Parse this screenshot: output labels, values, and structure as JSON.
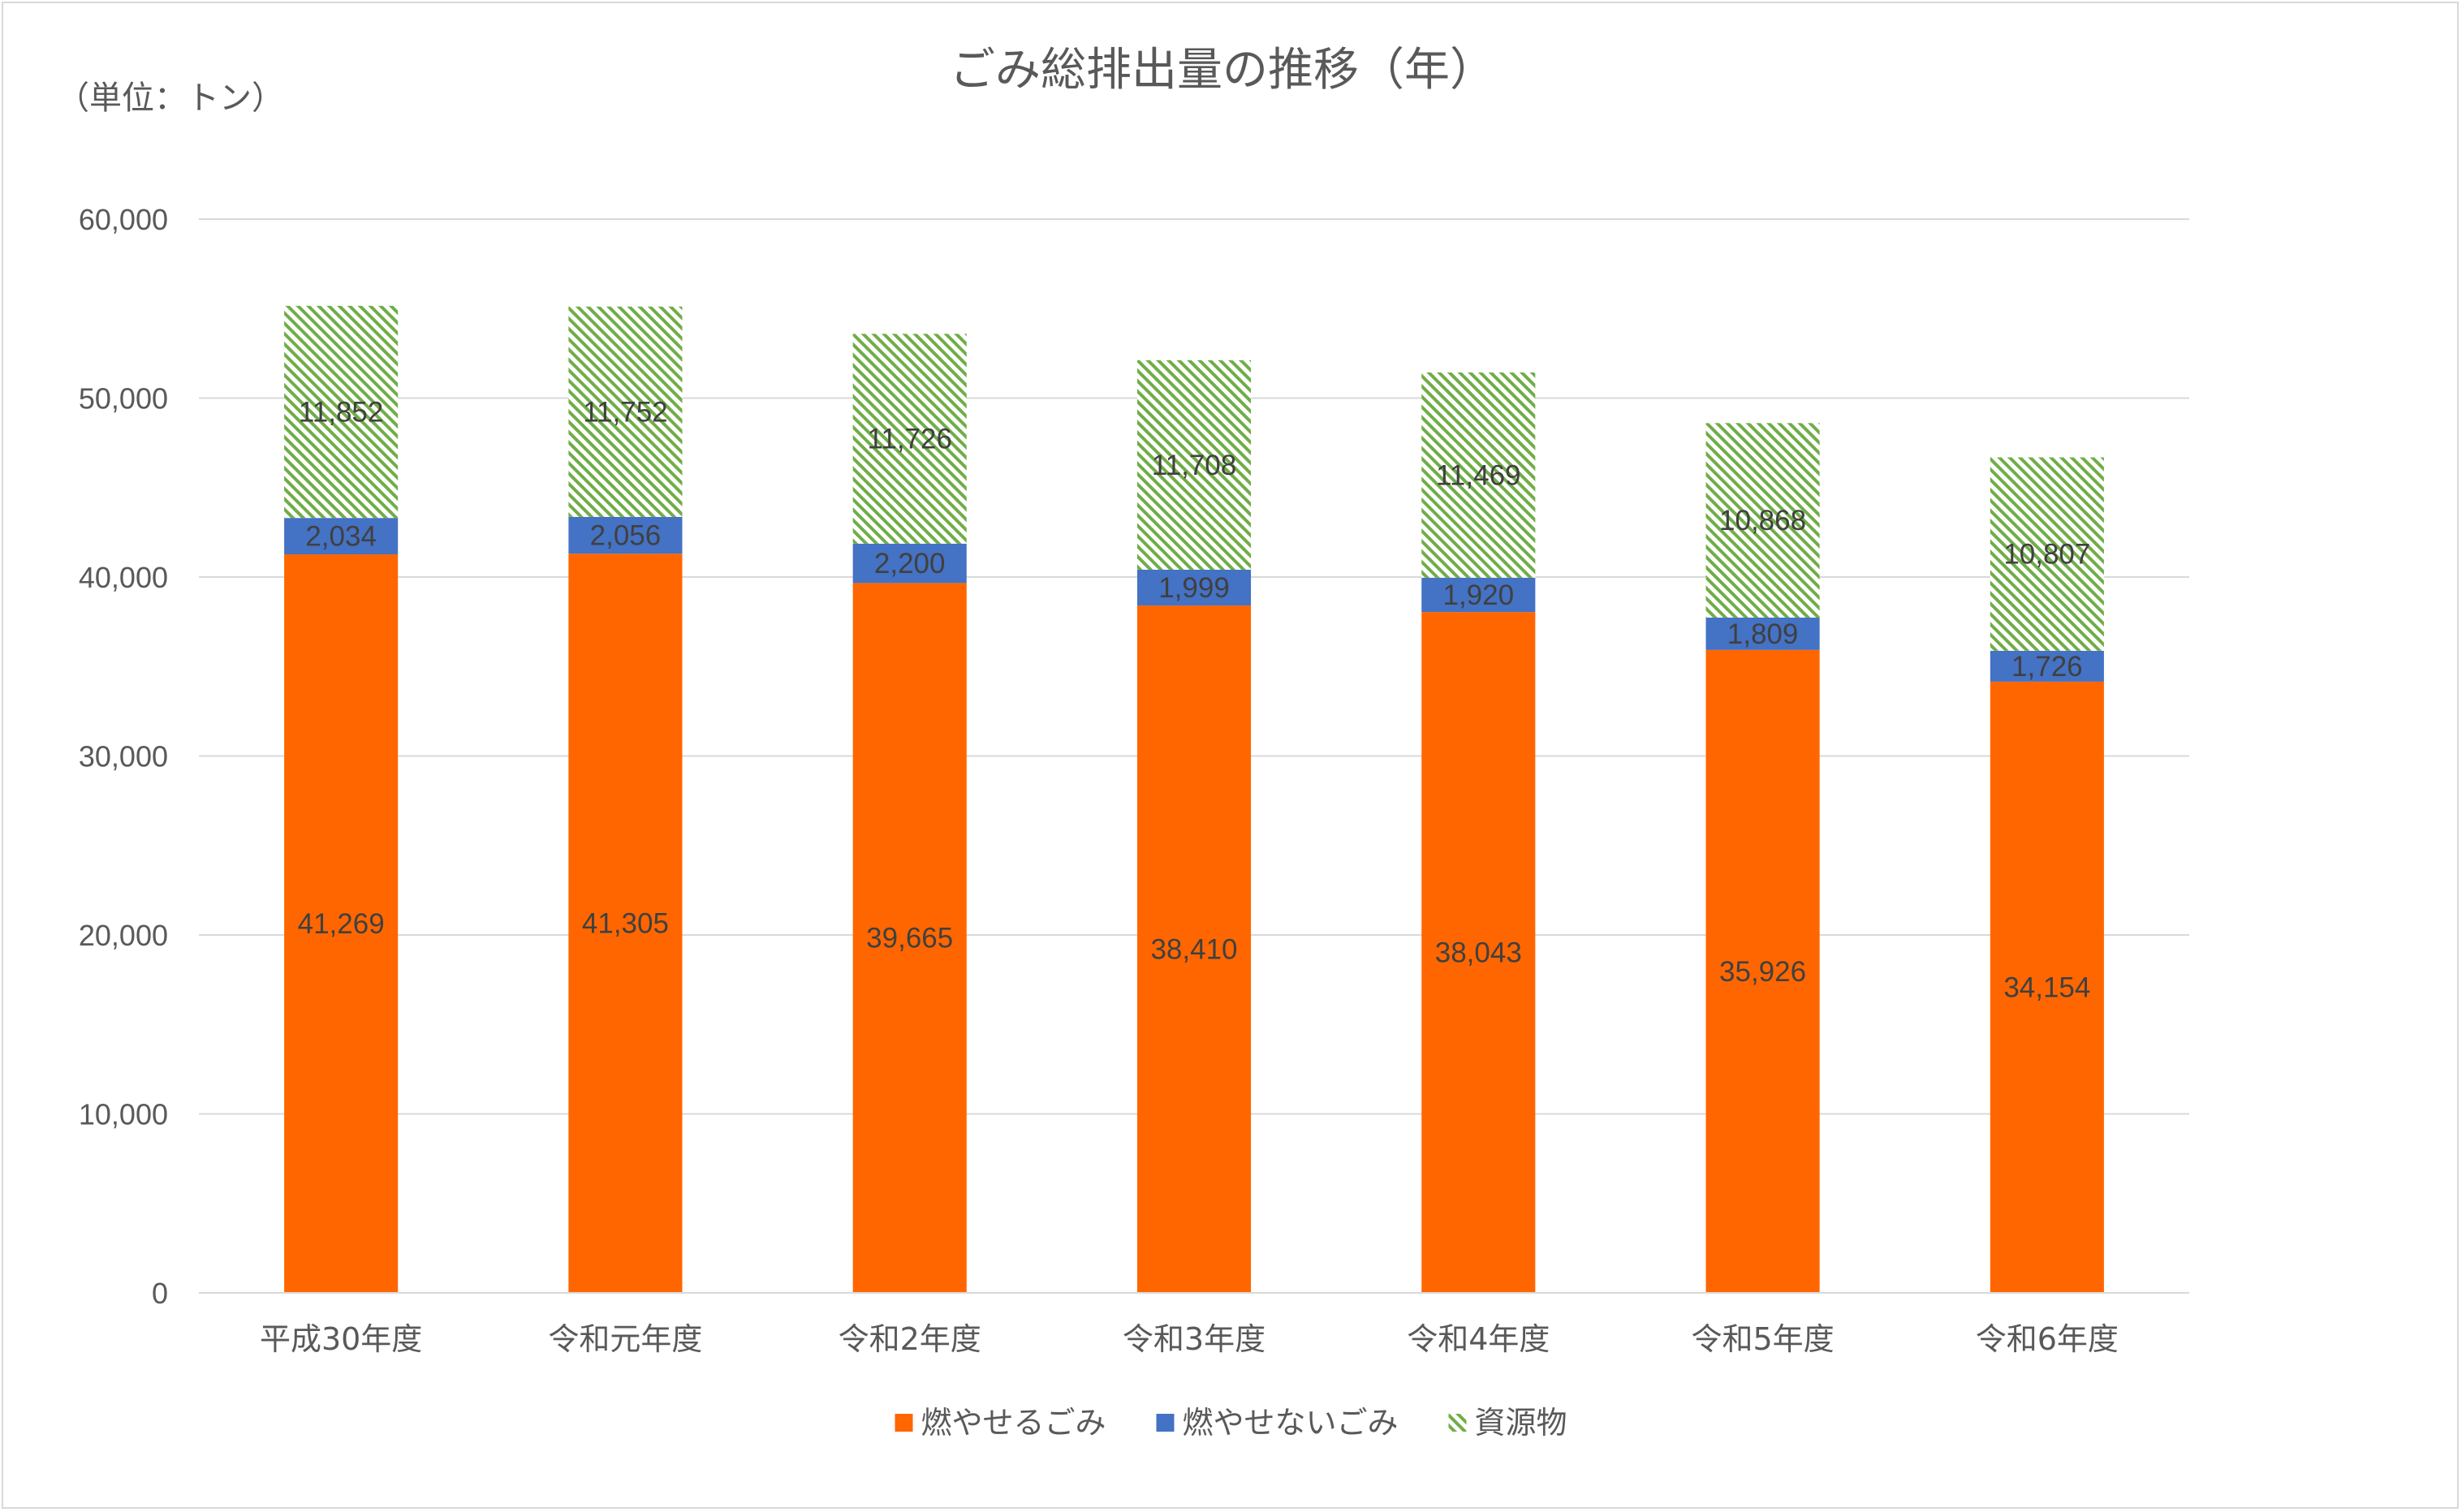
{
  "chart_data": {
    "type": "bar",
    "stacked": true,
    "title": "ごみ総排出量の推移（年）",
    "unit_label": "（単位：トン）",
    "categories": [
      "平成30年度",
      "令和元年度",
      "令和2年度",
      "令和3年度",
      "令和4年度",
      "令和5年度",
      "令和6年度"
    ],
    "series": [
      {
        "name": "燃やせるごみ",
        "color": "#ff6600",
        "pattern": "solid",
        "values": [
          41269,
          41305,
          39665,
          38410,
          38043,
          35926,
          34154
        ]
      },
      {
        "name": "燃やせないごみ",
        "color": "#4472c4",
        "pattern": "solid",
        "values": [
          2034,
          2056,
          2200,
          1999,
          1920,
          1809,
          1726
        ]
      },
      {
        "name": "資源物",
        "color": "#70ad47",
        "pattern": "diagonal-hatch",
        "values": [
          11852,
          11752,
          11726,
          11708,
          11469,
          10868,
          10807
        ]
      }
    ],
    "ylim": [
      0,
      60000
    ],
    "yticks": [
      0,
      10000,
      20000,
      30000,
      40000,
      50000,
      60000
    ],
    "ytick_labels": [
      "0",
      "10,000",
      "20,000",
      "30,000",
      "40,000",
      "50,000",
      "60,000"
    ],
    "grid": true,
    "legend_position": "bottom",
    "data_labels": true
  }
}
